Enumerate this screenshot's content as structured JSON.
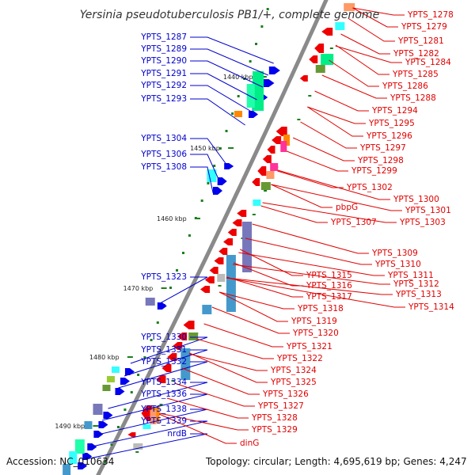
{
  "title": "Yersinia pseudotuberculosis PB1/+, complete genome",
  "footer": {
    "accession": "Accession: NC_010634",
    "summary": "Topology: circular; Length: 4,695,619 bp; Genes: 4,247"
  },
  "colors": {
    "backbone": "#8a8a8a",
    "forward_label": "#0000cc",
    "reverse_label": "#e00000",
    "tick": "#1a7f1a"
  },
  "ruler": [
    {
      "label": "1440 kbp"
    },
    {
      "label": "1450 kbp"
    },
    {
      "label": "1460 kbp"
    },
    {
      "label": "1470 kbp"
    },
    {
      "label": "1480 kbp"
    },
    {
      "label": "1490 kbp"
    }
  ],
  "left_labels": [
    "YPTS_1287",
    "YPTS_1289",
    "YPTS_1290",
    "YPTS_1291",
    "YPTS_1292",
    "YPTS_1293",
    "YPTS_1304",
    "YPTS_1306",
    "YPTS_1308",
    "YPTS_1323",
    "YPTS_1330",
    "YPTS_1331",
    "YPTS_1332",
    "YPTS_1334",
    "YPTS_1336",
    "YPTS_1338",
    "YPTS_1339",
    "nrdB"
  ],
  "right_labels": [
    "YPTS_1278",
    "YPTS_1279",
    "YPTS_1281",
    "YPTS_1282",
    "YPTS_1284",
    "YPTS_1285",
    "YPTS_1286",
    "YPTS_1288",
    "YPTS_1294",
    "YPTS_1295",
    "YPTS_1296",
    "YPTS_1297",
    "YPTS_1298",
    "YPTS_1299",
    "YPTS_1302",
    "YPTS_1300",
    "YPTS_1301",
    "pbpG",
    "YPTS_1303",
    "YPTS_1307",
    "YPTS_1309",
    "YPTS_1310",
    "YPTS_1311",
    "YPTS_1312",
    "YPTS_1313",
    "YPTS_1314",
    "YPTS_1315",
    "YPTS_1316",
    "YPTS_1317",
    "YPTS_1318",
    "YPTS_1319",
    "YPTS_1320",
    "YPTS_1321",
    "YPTS_1322",
    "YPTS_1324",
    "YPTS_1325",
    "YPTS_1326",
    "YPTS_1327",
    "YPTS_1328",
    "YPTS_1329",
    "dinG"
  ],
  "cog_colors": [
    "#00ee88",
    "#22ffaa",
    "#33ffff",
    "#ff8800",
    "#ff3399",
    "#7777bb",
    "#4499cc",
    "#99cc33",
    "#669933",
    "#ff9966",
    "#cc0000",
    "#bbbbbb"
  ]
}
